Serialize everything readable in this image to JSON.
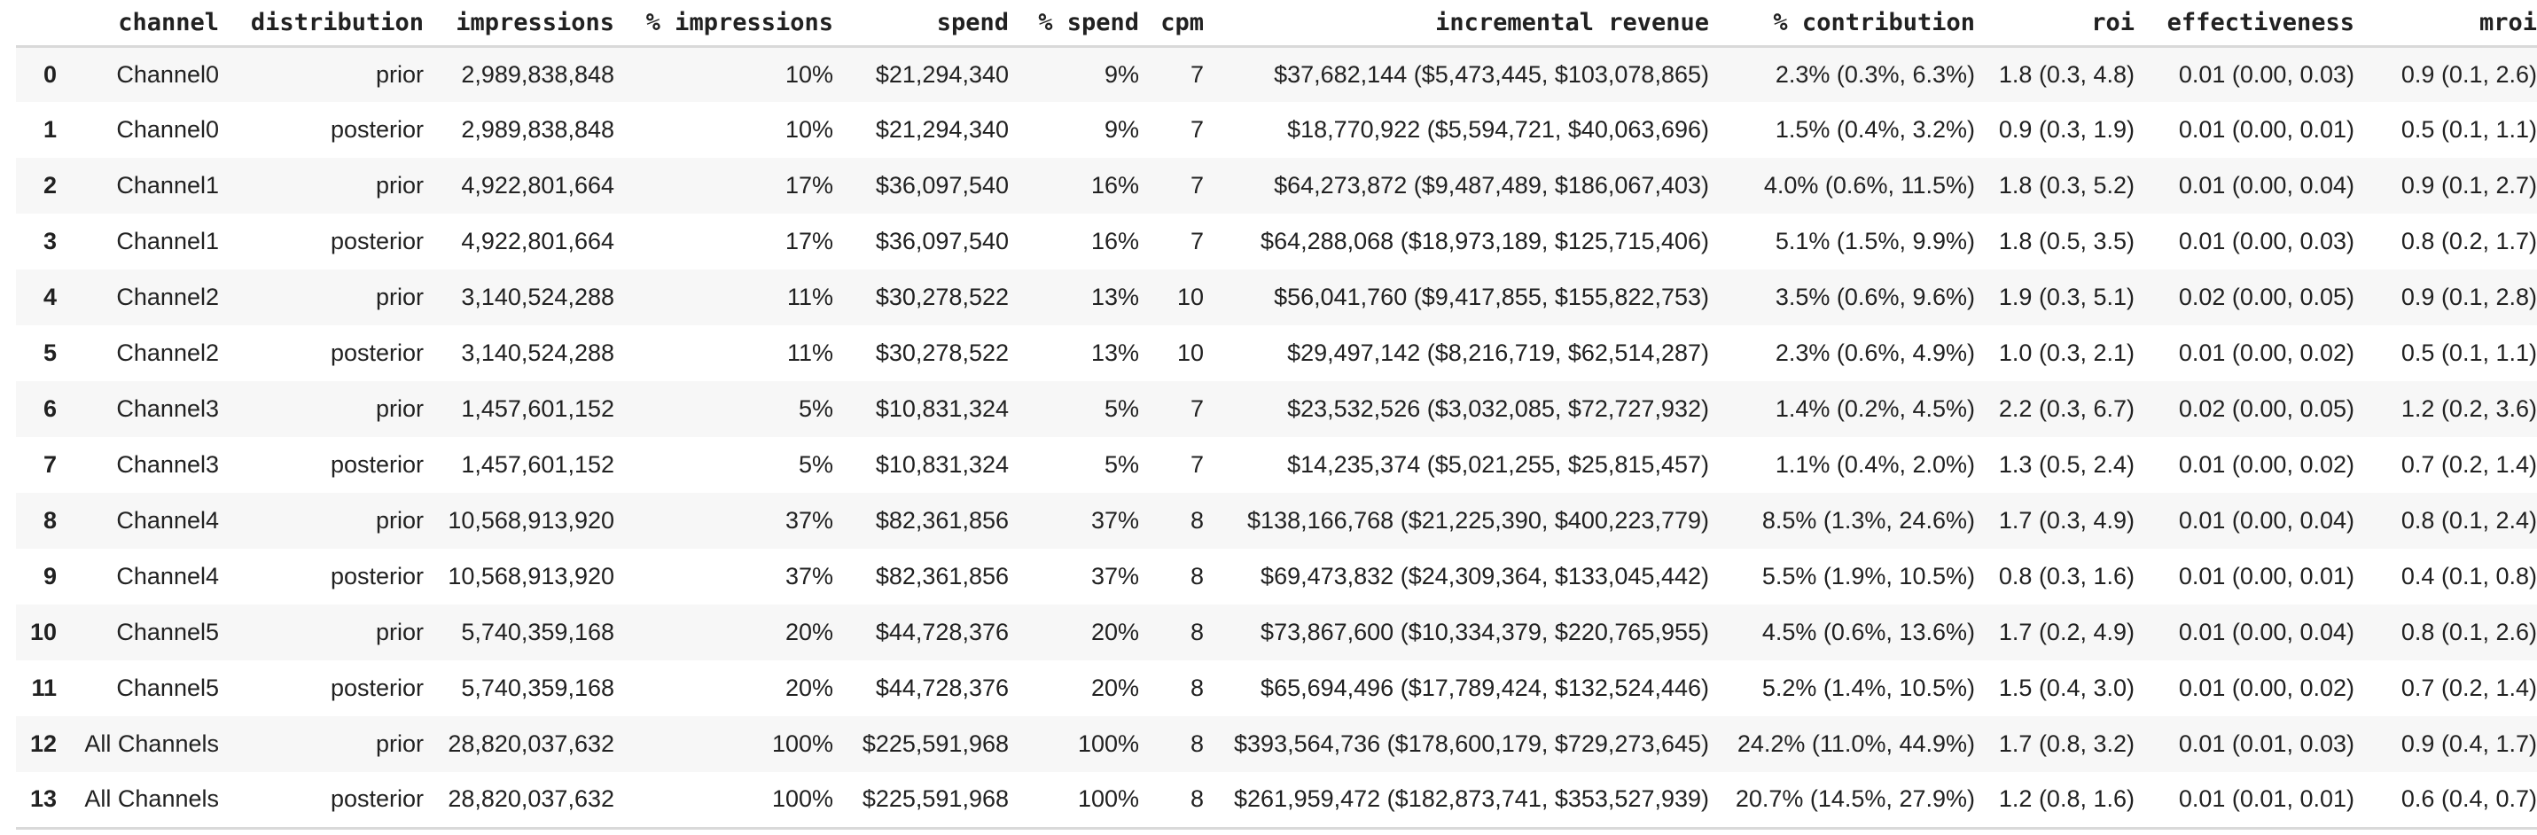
{
  "colors": {
    "text": "#212121",
    "row_stripe": "#f7f7f7",
    "row_plain": "#ffffff",
    "divider": "#d9d9d9",
    "background": "#ffffff"
  },
  "chart_data": {
    "type": "table",
    "legend_position": "none",
    "grid": "row-stripes",
    "columns": [
      "",
      "channel",
      "distribution",
      "impressions",
      "% impressions",
      "spend",
      "% spend",
      "cpm",
      "incremental revenue",
      "% contribution",
      "roi",
      "effectiveness",
      "mroi"
    ],
    "rows": [
      [
        "0",
        "Channel0",
        "prior",
        "2,989,838,848",
        "10%",
        "$21,294,340",
        "9%",
        "7",
        "$37,682,144 ($5,473,445, $103,078,865)",
        "2.3% (0.3%, 6.3%)",
        "1.8 (0.3, 4.8)",
        "0.01 (0.00, 0.03)",
        "0.9 (0.1, 2.6)"
      ],
      [
        "1",
        "Channel0",
        "posterior",
        "2,989,838,848",
        "10%",
        "$21,294,340",
        "9%",
        "7",
        "$18,770,922 ($5,594,721, $40,063,696)",
        "1.5% (0.4%, 3.2%)",
        "0.9 (0.3, 1.9)",
        "0.01 (0.00, 0.01)",
        "0.5 (0.1, 1.1)"
      ],
      [
        "2",
        "Channel1",
        "prior",
        "4,922,801,664",
        "17%",
        "$36,097,540",
        "16%",
        "7",
        "$64,273,872 ($9,487,489, $186,067,403)",
        "4.0% (0.6%, 11.5%)",
        "1.8 (0.3, 5.2)",
        "0.01 (0.00, 0.04)",
        "0.9 (0.1, 2.7)"
      ],
      [
        "3",
        "Channel1",
        "posterior",
        "4,922,801,664",
        "17%",
        "$36,097,540",
        "16%",
        "7",
        "$64,288,068 ($18,973,189, $125,715,406)",
        "5.1% (1.5%, 9.9%)",
        "1.8 (0.5, 3.5)",
        "0.01 (0.00, 0.03)",
        "0.8 (0.2, 1.7)"
      ],
      [
        "4",
        "Channel2",
        "prior",
        "3,140,524,288",
        "11%",
        "$30,278,522",
        "13%",
        "10",
        "$56,041,760 ($9,417,855, $155,822,753)",
        "3.5% (0.6%, 9.6%)",
        "1.9 (0.3, 5.1)",
        "0.02 (0.00, 0.05)",
        "0.9 (0.1, 2.8)"
      ],
      [
        "5",
        "Channel2",
        "posterior",
        "3,140,524,288",
        "11%",
        "$30,278,522",
        "13%",
        "10",
        "$29,497,142 ($8,216,719, $62,514,287)",
        "2.3% (0.6%, 4.9%)",
        "1.0 (0.3, 2.1)",
        "0.01 (0.00, 0.02)",
        "0.5 (0.1, 1.1)"
      ],
      [
        "6",
        "Channel3",
        "prior",
        "1,457,601,152",
        "5%",
        "$10,831,324",
        "5%",
        "7",
        "$23,532,526 ($3,032,085, $72,727,932)",
        "1.4% (0.2%, 4.5%)",
        "2.2 (0.3, 6.7)",
        "0.02 (0.00, 0.05)",
        "1.2 (0.2, 3.6)"
      ],
      [
        "7",
        "Channel3",
        "posterior",
        "1,457,601,152",
        "5%",
        "$10,831,324",
        "5%",
        "7",
        "$14,235,374 ($5,021,255, $25,815,457)",
        "1.1% (0.4%, 2.0%)",
        "1.3 (0.5, 2.4)",
        "0.01 (0.00, 0.02)",
        "0.7 (0.2, 1.4)"
      ],
      [
        "8",
        "Channel4",
        "prior",
        "10,568,913,920",
        "37%",
        "$82,361,856",
        "37%",
        "8",
        "$138,166,768 ($21,225,390, $400,223,779)",
        "8.5% (1.3%, 24.6%)",
        "1.7 (0.3, 4.9)",
        "0.01 (0.00, 0.04)",
        "0.8 (0.1, 2.4)"
      ],
      [
        "9",
        "Channel4",
        "posterior",
        "10,568,913,920",
        "37%",
        "$82,361,856",
        "37%",
        "8",
        "$69,473,832 ($24,309,364, $133,045,442)",
        "5.5% (1.9%, 10.5%)",
        "0.8 (0.3, 1.6)",
        "0.01 (0.00, 0.01)",
        "0.4 (0.1, 0.8)"
      ],
      [
        "10",
        "Channel5",
        "prior",
        "5,740,359,168",
        "20%",
        "$44,728,376",
        "20%",
        "8",
        "$73,867,600 ($10,334,379, $220,765,955)",
        "4.5% (0.6%, 13.6%)",
        "1.7 (0.2, 4.9)",
        "0.01 (0.00, 0.04)",
        "0.8 (0.1, 2.6)"
      ],
      [
        "11",
        "Channel5",
        "posterior",
        "5,740,359,168",
        "20%",
        "$44,728,376",
        "20%",
        "8",
        "$65,694,496 ($17,789,424, $132,524,446)",
        "5.2% (1.4%, 10.5%)",
        "1.5 (0.4, 3.0)",
        "0.01 (0.00, 0.02)",
        "0.7 (0.2, 1.4)"
      ],
      [
        "12",
        "All Channels",
        "prior",
        "28,820,037,632",
        "100%",
        "$225,591,968",
        "100%",
        "8",
        "$393,564,736 ($178,600,179, $729,273,645)",
        "24.2% (11.0%, 44.9%)",
        "1.7 (0.8, 3.2)",
        "0.01 (0.01, 0.03)",
        "0.9 (0.4, 1.7)"
      ],
      [
        "13",
        "All Channels",
        "posterior",
        "28,820,037,632",
        "100%",
        "$225,591,968",
        "100%",
        "8",
        "$261,959,472 ($182,873,741, $353,527,939)",
        "20.7% (14.5%, 27.9%)",
        "1.2 (0.8, 1.6)",
        "0.01 (0.01, 0.01)",
        "0.6 (0.4, 0.7)"
      ]
    ]
  }
}
